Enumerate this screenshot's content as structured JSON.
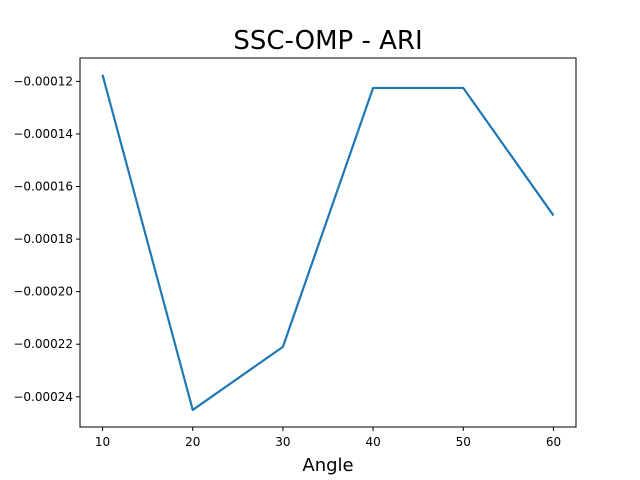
{
  "chart_data": {
    "type": "line",
    "title": "SSC-OMP - ARI",
    "xlabel": "Angle",
    "ylabel": "",
    "x": [
      10,
      20,
      30,
      40,
      50,
      60
    ],
    "series": [
      {
        "color": "#1f77b4",
        "values": [
          -0.0001175,
          -0.000245,
          -0.000221,
          -0.0001225,
          -0.0001225,
          -0.000171
        ]
      }
    ],
    "xticks": [
      10,
      20,
      30,
      40,
      50,
      60
    ],
    "xtick_labels": [
      "10",
      "20",
      "30",
      "40",
      "50",
      "60"
    ],
    "yticks": [
      -0.00012,
      -0.00014,
      -0.00016,
      -0.00018,
      -0.0002,
      -0.00022,
      -0.00024
    ],
    "ytick_labels": [
      "−0.00012",
      "−0.00014",
      "−0.00016",
      "−0.00018",
      "−0.00020",
      "−0.00022",
      "−0.00024"
    ],
    "xlim": [
      7.5,
      62.5
    ],
    "ylim": [
      -0.0002515,
      -0.0001111
    ],
    "grid": false,
    "legend": "none"
  }
}
